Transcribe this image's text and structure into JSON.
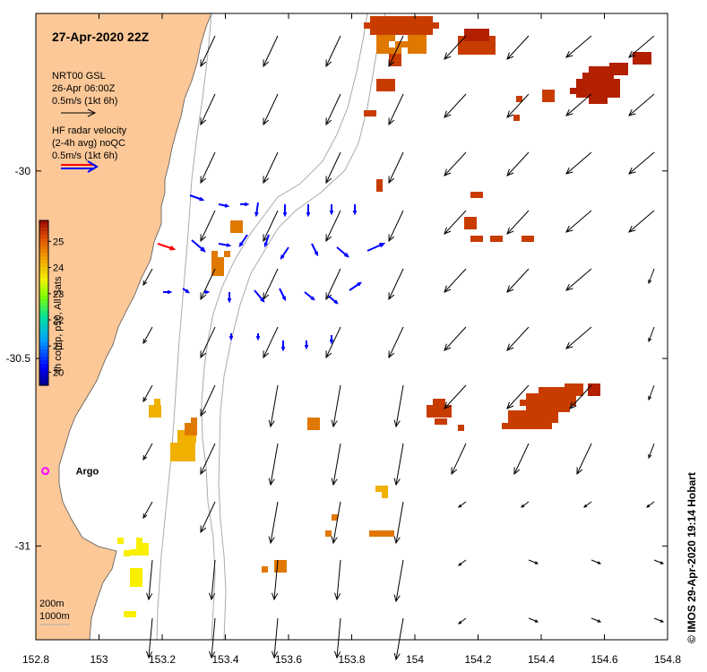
{
  "title": "27-Apr-2020 22Z",
  "credit": "© IMOS 29-Apr-2020 19:14 Hobart",
  "legend_model": {
    "name": "NRT00 GSL",
    "time": "26-Apr 06:00Z",
    "scale": "0.5m/s (1kt 6h)",
    "color": "#000000"
  },
  "legend_radar": {
    "line1": "HF radar velocity",
    "line2": "(2-4h avg) noQC",
    "scale": "0.5m/s (1kt 6h)",
    "color_primary": "#0000ff",
    "color_secondary": "#ff0000"
  },
  "colorbar": {
    "label": "4h comp, p50, All Sats",
    "ticks": [
      "20",
      "21",
      "22",
      "23",
      "24",
      "25"
    ],
    "min": 19.5,
    "max": 25.8
  },
  "argo": {
    "label": "Argo",
    "lon": 152.83,
    "lat": -30.8,
    "color": "#ff00ff"
  },
  "bathymetry": {
    "line1": "200m",
    "line2": "1000m"
  },
  "axes": {
    "x_ticks": [
      152.8,
      153,
      153.2,
      153.4,
      153.6,
      153.8,
      154,
      154.2,
      154.4,
      154.6,
      154.8
    ],
    "x_labels": [
      "152.8",
      "153",
      "153.2",
      "153.4",
      "153.6",
      "153.8",
      "154",
      "154.2",
      "154.4",
      "154.6",
      "154.8"
    ],
    "y_ticks": [
      -30,
      -30.5,
      -31
    ],
    "y_labels": [
      "-30",
      "-30.5",
      "-31"
    ],
    "xlim": [
      152.8,
      154.8
    ],
    "ylim": [
      -31.25,
      -29.58
    ]
  },
  "colors": {
    "land": "#fcc898",
    "ocean": "#ffffff",
    "sst_dark": "#b22000",
    "sst_red": "#c83c00",
    "sst_orange": "#e07800",
    "sst_gold": "#f0b000",
    "sst_yellow": "#f8f000"
  }
}
